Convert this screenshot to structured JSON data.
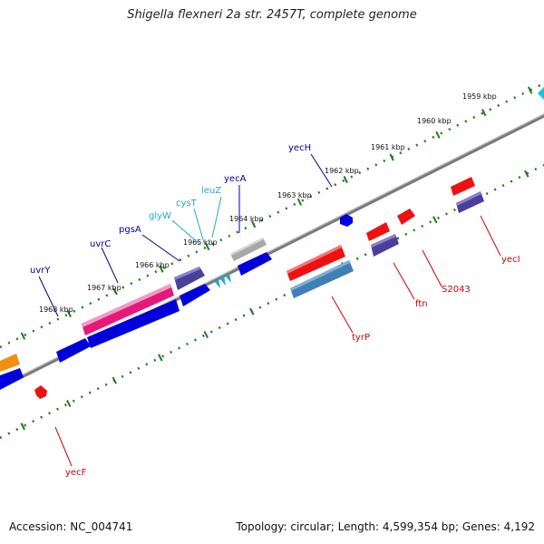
{
  "title": "Shigella flexneri 2a str. 2457T, complete genome",
  "accession": "Accession: NC_004741",
  "topology": "Topology: circular; Length: 4,599,354 bp; Genes: 4,192",
  "colors": {
    "backbone": "#888888",
    "tick_dots": "#1e7a1e",
    "label_forward": "#000099",
    "label_forward_light": "#22aacc",
    "label_reverse": "#cc0000",
    "magenta": "#e6197a",
    "blue": "#0000dd",
    "navy": "#4a3f9a",
    "red": "#ee1111",
    "steel": "#3f7fb5",
    "gray": "#a8a8a8",
    "orange": "#f09010",
    "cyan": "#11c8d8"
  },
  "kbp_labels": [
    "1959 kbp",
    "1960 kbp",
    "1961 kbp",
    "1962 kbp",
    "1963 kbp",
    "1964 kbp",
    "1965 kbp",
    "1966 kbp",
    "1967 kbp",
    "1968 kbp"
  ],
  "gene_labels_forward": [
    "yecH",
    "yecA",
    "leuZ",
    "cysT",
    "glyW",
    "pgsA",
    "uvrC",
    "uvrY"
  ],
  "gene_labels_reverse": [
    "yecI",
    "S2043",
    "ftn",
    "tyrP",
    "yecF"
  ]
}
